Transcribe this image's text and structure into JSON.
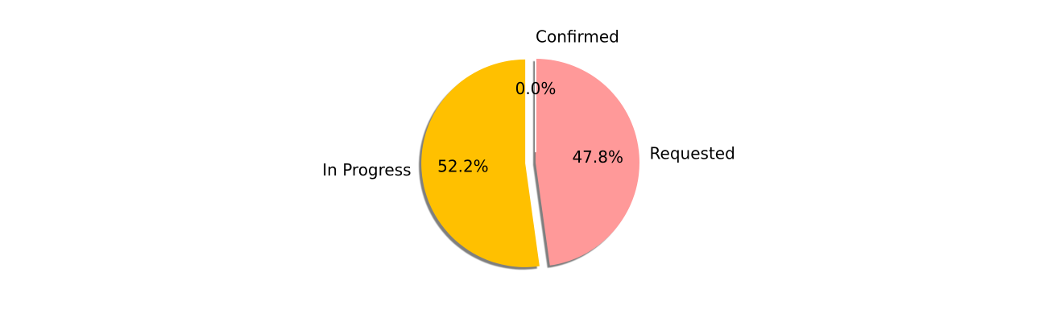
{
  "chart_data": {
    "type": "pie",
    "title": "",
    "labels": [
      "In Progress",
      "Requested",
      "Confirmed"
    ],
    "values": [
      52.2,
      47.8,
      0.0
    ],
    "percent_labels": [
      "52.2%",
      "47.8%",
      "0.0%"
    ],
    "colors": [
      "#FFC000",
      "#FF9999",
      "#66B3FF"
    ],
    "exploded": [
      true,
      false,
      true
    ],
    "shadow": true,
    "start_angle_deg": 90,
    "direction": "counterclockwise",
    "legend": "none"
  }
}
